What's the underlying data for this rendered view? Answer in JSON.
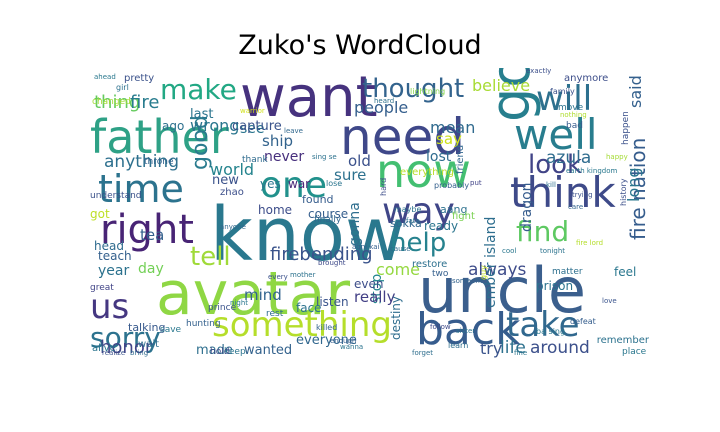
{
  "chart_data": {
    "type": "wordcloud",
    "title": "Zuko's WordCloud",
    "words": [
      {
        "text": "uncle",
        "weight": 100,
        "color": "#3b5f8d"
      },
      {
        "text": "avatar",
        "weight": 95,
        "color": "#8fd744"
      },
      {
        "text": "know",
        "weight": 92,
        "color": "#2a788e"
      },
      {
        "text": "want",
        "weight": 80,
        "color": "#46327e"
      },
      {
        "text": "need",
        "weight": 74,
        "color": "#3f4889"
      },
      {
        "text": "father",
        "weight": 72,
        "color": "#2ea186"
      },
      {
        "text": "going",
        "weight": 70,
        "color": "#277f8e"
      },
      {
        "text": "now",
        "weight": 68,
        "color": "#43bf71"
      },
      {
        "text": "back",
        "weight": 62,
        "color": "#365c8d"
      },
      {
        "text": "think",
        "weight": 60,
        "color": "#3e4a89"
      },
      {
        "text": "well",
        "weight": 58,
        "color": "#287d8e"
      },
      {
        "text": "something",
        "weight": 55,
        "color": "#b5de2b"
      },
      {
        "text": "take",
        "weight": 54,
        "color": "#31688e"
      },
      {
        "text": "right",
        "weight": 54,
        "color": "#482475"
      },
      {
        "text": "time",
        "weight": 52,
        "color": "#2c738e"
      },
      {
        "text": "one",
        "weight": 50,
        "color": "#21918c"
      },
      {
        "text": "way",
        "weight": 48,
        "color": "#404688"
      },
      {
        "text": "will",
        "weight": 46,
        "color": "#2d708e"
      },
      {
        "text": "us",
        "weight": 44,
        "color": "#453781"
      },
      {
        "text": "make",
        "weight": 42,
        "color": "#22a884"
      },
      {
        "text": "thought",
        "weight": 40,
        "color": "#33638d"
      },
      {
        "text": "sorry",
        "weight": 40,
        "color": "#2c728e"
      },
      {
        "text": "find",
        "weight": 38,
        "color": "#5ec962"
      },
      {
        "text": "help",
        "weight": 38,
        "color": "#26828e"
      },
      {
        "text": "look",
        "weight": 36,
        "color": "#414487"
      },
      {
        "text": "tell",
        "weight": 36,
        "color": "#a0da39"
      },
      {
        "text": "good",
        "weight": 34,
        "color": "#2a7b8e"
      },
      {
        "text": "honor",
        "weight": 26,
        "color": "#404387"
      },
      {
        "text": "fire nation",
        "weight": 22,
        "color": "#365d8d"
      },
      {
        "text": "firebending",
        "weight": 22,
        "color": "#3a538b"
      },
      {
        "text": "thing",
        "weight": 22,
        "color": "#65cb5e"
      },
      {
        "text": "fire",
        "weight": 22,
        "color": "#287c8e"
      },
      {
        "text": "anything",
        "weight": 20,
        "color": "#2d708e"
      },
      {
        "text": "believe",
        "weight": 20,
        "color": "#a8db34"
      },
      {
        "text": "azula",
        "weight": 20,
        "color": "#2f6c8e"
      },
      {
        "text": "said",
        "weight": 20,
        "color": "#34608d"
      },
      {
        "text": "long",
        "weight": 20,
        "color": "#2a778e"
      },
      {
        "text": "always",
        "weight": 20,
        "color": "#3e4c8a"
      },
      {
        "text": "life",
        "weight": 20,
        "color": "#2d718e"
      },
      {
        "text": "try",
        "weight": 20,
        "color": "#3a548c"
      },
      {
        "text": "around",
        "weight": 20,
        "color": "#3c508b"
      },
      {
        "text": "world",
        "weight": 18,
        "color": "#25848e"
      },
      {
        "text": "wrong",
        "weight": 18,
        "color": "#2a768e"
      },
      {
        "text": "people",
        "weight": 18,
        "color": "#355f8d"
      },
      {
        "text": "mean",
        "weight": 18,
        "color": "#306a8e"
      },
      {
        "text": "say",
        "weight": 18,
        "color": "#cde11d"
      },
      {
        "text": "old",
        "weight": 18,
        "color": "#3b518b"
      },
      {
        "text": "sure",
        "weight": 18,
        "color": "#2c718e"
      },
      {
        "text": "gonna",
        "weight": 18,
        "color": "#2e6e8e"
      },
      {
        "text": "stop",
        "weight": 18,
        "color": "#24868e"
      },
      {
        "text": "come",
        "weight": 18,
        "color": "#95d840"
      },
      {
        "text": "really",
        "weight": 18,
        "color": "#423f85"
      },
      {
        "text": "ship",
        "weight": 18,
        "color": "#33638d"
      },
      {
        "text": "see",
        "weight": 18,
        "color": "#2b758e"
      },
      {
        "text": "never",
        "weight": 16,
        "color": "#472f7d"
      },
      {
        "text": "mind",
        "weight": 16,
        "color": "#32648e"
      },
      {
        "text": "made",
        "weight": 16,
        "color": "#2e6f8e"
      },
      {
        "text": "new",
        "weight": 16,
        "color": "#3b528b"
      },
      {
        "text": "year",
        "weight": 16,
        "color": "#2c728e"
      },
      {
        "text": "day",
        "weight": 16,
        "color": "#73d056"
      },
      {
        "text": "tea",
        "weight": 16,
        "color": "#34618d"
      },
      {
        "text": "lost",
        "weight": 16,
        "color": "#2f6b8e"
      },
      {
        "text": "last",
        "weight": 14,
        "color": "#2b748e"
      },
      {
        "text": "even",
        "weight": 14,
        "color": "#3d4e8a"
      },
      {
        "text": "wanted",
        "weight": 14,
        "color": "#33628d"
      },
      {
        "text": "everyone",
        "weight": 14,
        "color": "#31678e"
      },
      {
        "text": "capture",
        "weight": 14,
        "color": "#3a538b"
      },
      {
        "text": "dragon",
        "weight": 14,
        "color": "#365c8d"
      },
      {
        "text": "home",
        "weight": 12,
        "color": "#3d4d8a"
      },
      {
        "text": "ready",
        "weight": 12,
        "color": "#2b758e"
      },
      {
        "text": "destiny",
        "weight": 12,
        "color": "#2e6d8e"
      },
      {
        "text": "prison",
        "weight": 12,
        "color": "#2c738e"
      },
      {
        "text": "feel",
        "weight": 12,
        "color": "#2a778e"
      },
      {
        "text": "talking",
        "weight": 12,
        "color": "#37598c"
      },
      {
        "text": "teach",
        "weight": 12,
        "color": "#34608d"
      },
      {
        "text": "ago",
        "weight": 12,
        "color": "#2d708e"
      },
      {
        "text": "course",
        "weight": 12,
        "color": "#355e8d"
      },
      {
        "text": "yes",
        "weight": 12,
        "color": "#2a778e"
      },
      {
        "text": "war",
        "weight": 12,
        "color": "#482878"
      },
      {
        "text": "got",
        "weight": 12,
        "color": "#bddf26"
      },
      {
        "text": "head",
        "weight": 12,
        "color": "#2f6b8e"
      },
      {
        "text": "listen",
        "weight": 12,
        "color": "#3a548c"
      },
      {
        "text": "sokka",
        "weight": 10,
        "color": "#31678e"
      },
      {
        "text": "aang",
        "weight": 10,
        "color": "#2d718e"
      },
      {
        "text": "fight",
        "weight": 10,
        "color": "#7ad151"
      },
      {
        "text": "zhao",
        "weight": 10,
        "color": "#3c4f8a"
      },
      {
        "text": "face",
        "weight": 10,
        "color": "#2c738e"
      },
      {
        "text": "everything",
        "weight": 10,
        "color": "#b8de29"
      },
      {
        "text": "found",
        "weight": 10,
        "color": "#365d8d"
      },
      {
        "text": "wait",
        "weight": 10,
        "color": "#2e6e8e"
      },
      {
        "text": "alive",
        "weight": 10,
        "color": "#2b758e"
      },
      {
        "text": "changed",
        "weight": 10,
        "color": "#a2da37"
      },
      {
        "text": "pretty",
        "weight": 8,
        "color": "#3b528b"
      },
      {
        "text": "throne",
        "weight": 8,
        "color": "#33638d"
      },
      {
        "text": "thank",
        "weight": 8,
        "color": "#2f6b8e"
      },
      {
        "text": "anymore",
        "weight": 8,
        "color": "#3d4e8a"
      },
      {
        "text": "restore",
        "weight": 8,
        "color": "#2d708e"
      },
      {
        "text": "save",
        "weight": 8,
        "color": "#2a788e"
      },
      {
        "text": "two",
        "weight": 8,
        "color": "#355f8d"
      },
      {
        "text": "great",
        "weight": 8,
        "color": "#414487"
      },
      {
        "text": "remember",
        "weight": 8,
        "color": "#2c728e"
      },
      {
        "text": "place",
        "weight": 8,
        "color": "#2a778e"
      },
      {
        "text": "bad",
        "weight": 8,
        "color": "#365c8d"
      },
      {
        "text": "finally",
        "weight": 8,
        "color": "#31688e"
      },
      {
        "text": "understand",
        "weight": 8,
        "color": "#3b528b"
      },
      {
        "text": "move",
        "weight": 8,
        "color": "#2c738e"
      },
      {
        "text": "hunting",
        "weight": 8,
        "color": "#34618d"
      },
      {
        "text": "keep",
        "weight": 8,
        "color": "#2b748e"
      },
      {
        "text": "hold",
        "weight": 8,
        "color": "#3e4a89"
      },
      {
        "text": "rest",
        "weight": 8,
        "color": "#2f6c8e"
      },
      {
        "text": "prince",
        "weight": 8,
        "color": "#3a538b"
      },
      {
        "text": "girl",
        "weight": 8,
        "color": "#2d718e"
      },
      {
        "text": "killed",
        "weight": 8,
        "color": "#33638d"
      },
      {
        "text": "ba sing",
        "weight": 7,
        "color": "#2a778e"
      },
      {
        "text": "happen",
        "weight": 7,
        "color": "#3b518b"
      },
      {
        "text": "matter",
        "weight": 7,
        "color": "#2d708e"
      },
      {
        "text": "guy",
        "weight": 7,
        "color": "#c2df23"
      },
      {
        "text": "friend",
        "weight": 7,
        "color": "#31678e"
      },
      {
        "text": "history",
        "weight": 7,
        "color": "#3c4f8a"
      },
      {
        "text": "maybe",
        "weight": 7,
        "color": "#2c738e"
      },
      {
        "text": "lightning",
        "weight": 6,
        "color": "#85d54a"
      },
      {
        "text": "defeat",
        "weight": 6,
        "color": "#355e8d"
      },
      {
        "text": "learn",
        "weight": 6,
        "color": "#2e6e8e"
      },
      {
        "text": "family",
        "weight": 6,
        "color": "#3b528b"
      },
      {
        "text": "lose",
        "weight": 6,
        "color": "#2b758e"
      },
      {
        "text": "ahead",
        "weight": 6,
        "color": "#2a788e"
      },
      {
        "text": "probably",
        "weight": 6,
        "color": "#34608d"
      },
      {
        "text": "hard",
        "weight": 6,
        "color": "#3d4d8a"
      },
      {
        "text": "warrior",
        "weight": 6,
        "color": "#d2e21b"
      },
      {
        "text": "sing se",
        "weight": 6,
        "color": "#2c728e"
      },
      {
        "text": "leave",
        "weight": 6,
        "color": "#31688e"
      },
      {
        "text": "nothing",
        "weight": 6,
        "color": "#b0dd2f"
      },
      {
        "text": "happy",
        "weight": 6,
        "color": "#a5db36"
      },
      {
        "text": "brought",
        "weight": 5,
        "color": "#3e4a89"
      },
      {
        "text": "bring",
        "weight": 5,
        "color": "#2f6b8e"
      },
      {
        "text": "fate",
        "weight": 5,
        "color": "#2d708e"
      },
      {
        "text": "someone",
        "weight": 5,
        "color": "#33638d"
      },
      {
        "text": "every",
        "weight": 5,
        "color": "#3b518b"
      },
      {
        "text": "night",
        "weight": 5,
        "color": "#2a778e"
      },
      {
        "text": "tonight",
        "weight": 5,
        "color": "#2c738e"
      },
      {
        "text": "enough",
        "weight": 5,
        "color": "#355f8d"
      },
      {
        "text": "forget",
        "weight": 5,
        "color": "#2e6e8e"
      },
      {
        "text": "love",
        "weight": 5,
        "color": "#3a548c"
      },
      {
        "text": "fire lord",
        "weight": 5,
        "color": "#b5de2b"
      },
      {
        "text": "wanna",
        "weight": 5,
        "color": "#2b748e"
      },
      {
        "text": "put",
        "weight": 5,
        "color": "#414487"
      },
      {
        "text": "earth kingdom",
        "weight": 5,
        "color": "#2a788e"
      },
      {
        "text": "realize",
        "weight": 5,
        "color": "#3b528b"
      },
      {
        "text": "heard",
        "weight": 5,
        "color": "#2d718e"
      },
      {
        "text": "anyone",
        "weight": 5,
        "color": "#31688e"
      },
      {
        "text": "sister",
        "weight": 5,
        "color": "#2c738e"
      },
      {
        "text": "exactly",
        "weight": 5,
        "color": "#3c4f8a"
      },
      {
        "text": "cause",
        "weight": 5,
        "color": "#2f6b8e"
      },
      {
        "text": "fine",
        "weight": 5,
        "color": "#2b758e"
      },
      {
        "text": "agni kai",
        "weight": 5,
        "color": "#35608d"
      },
      {
        "text": "cool",
        "weight": 5,
        "color": "#2a778e"
      },
      {
        "text": "follow",
        "weight": 5,
        "color": "#3e4a89"
      },
      {
        "text": "mother",
        "weight": 5,
        "color": "#2c728e"
      },
      {
        "text": "care",
        "weight": 5,
        "color": "#33638d"
      },
      {
        "text": "kill",
        "weight": 5,
        "color": "#2d708e"
      },
      {
        "text": "trying",
        "weight": 5,
        "color": "#3b518b"
      },
      {
        "text": "ember island",
        "weight": 5,
        "color": "#2e6e8e"
      },
      {
        "text": "crew",
        "weight": 5,
        "color": "#2b748e"
      },
      {
        "text": "ever",
        "weight": 5,
        "color": "#355e8d"
      },
      {
        "text": "happened",
        "weight": 5,
        "color": "#2a788e"
      },
      {
        "text": "deserve",
        "weight": 5,
        "color": "#3c508b"
      },
      {
        "text": "fighting",
        "weight": 5,
        "color": "#2c738e"
      },
      {
        "text": "banished",
        "weight": 5,
        "color": "#31678e"
      },
      {
        "text": "coming",
        "weight": 5,
        "color": "#2d718e"
      },
      {
        "text": "guess",
        "weight": 14,
        "color": "#7ad151"
      }
    ]
  }
}
